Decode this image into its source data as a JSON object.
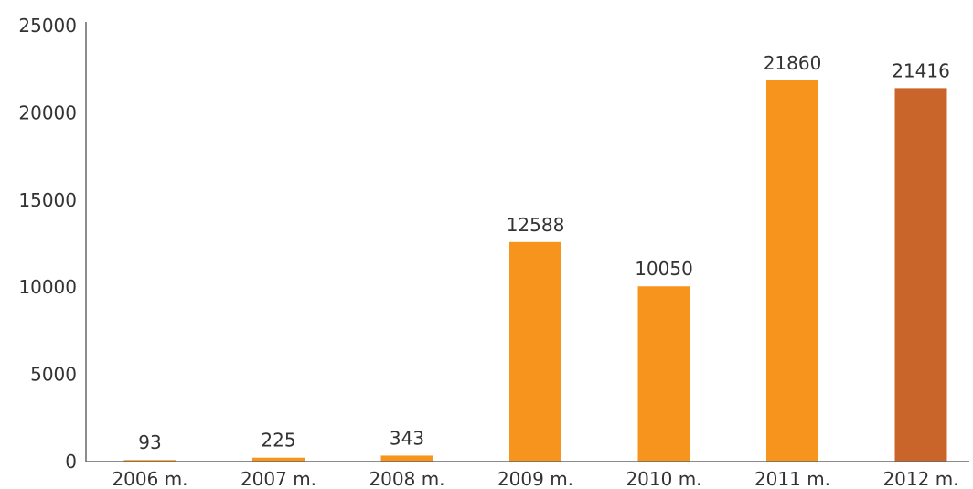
{
  "chart_data": {
    "type": "bar",
    "categories": [
      "2006 m.",
      "2007 m.",
      "2008 m.",
      "2009 m.",
      "2010 m.",
      "2011 m.",
      "2012 m."
    ],
    "values": [
      93,
      225,
      343,
      12588,
      10050,
      21860,
      21416
    ],
    "data_labels": [
      "93",
      "225",
      "343",
      "12588",
      "10050",
      "21860",
      "21416"
    ],
    "title": "",
    "xlabel": "",
    "ylabel": "",
    "ylim": [
      0,
      25000
    ],
    "yticks": [
      0,
      5000,
      10000,
      15000,
      20000,
      25000
    ],
    "ytick_labels": [
      "0",
      "5000",
      "10000",
      "15000",
      "20000",
      "25000"
    ],
    "grid": false,
    "legend": "none",
    "colors": [
      "#f7941d",
      "#f7941d",
      "#f7941d",
      "#f7941d",
      "#f7941d",
      "#f7941d",
      "#c9652b"
    ]
  }
}
